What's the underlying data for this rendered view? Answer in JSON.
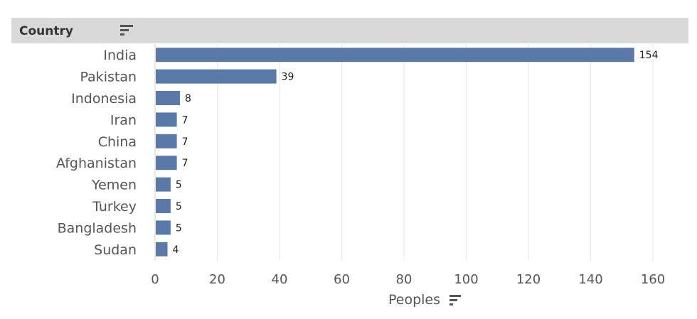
{
  "header": {
    "column_label": "Country"
  },
  "icons": {
    "header_sort": "sort-descending-icon",
    "axis_sort": "sort-descending-icon"
  },
  "colors": {
    "bar": "#5b79a8",
    "header_bg": "#d9d9d9",
    "gridline": "#e6e6e6"
  },
  "chart_data": {
    "type": "bar",
    "orientation": "horizontal",
    "categories": [
      "India",
      "Pakistan",
      "Indonesia",
      "Iran",
      "China",
      "Afghanistan",
      "Yemen",
      "Turkey",
      "Bangladesh",
      "Sudan"
    ],
    "values": [
      154,
      39,
      8,
      7,
      7,
      7,
      5,
      5,
      5,
      4
    ],
    "xlabel": "Peoples",
    "ylabel": "Country",
    "xlim": [
      0,
      165
    ],
    "xticks": [
      0,
      20,
      40,
      60,
      80,
      100,
      120,
      140,
      160
    ],
    "grid": true,
    "data_labels": true
  }
}
